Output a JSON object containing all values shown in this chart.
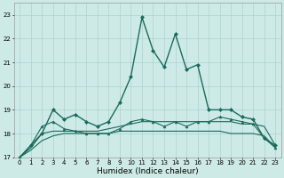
{
  "xlabel": "Humidex (Indice chaleur)",
  "ylabel": "",
  "xlim": [
    -0.5,
    23.5
  ],
  "ylim": [
    17,
    23.5
  ],
  "yticks": [
    17,
    18,
    19,
    20,
    21,
    22,
    23
  ],
  "xticks": [
    0,
    1,
    2,
    3,
    4,
    5,
    6,
    7,
    8,
    9,
    10,
    11,
    12,
    13,
    14,
    15,
    16,
    17,
    18,
    19,
    20,
    21,
    22,
    23
  ],
  "bg_color": "#ceeae7",
  "grid_color": "#aad4d0",
  "line_color": "#1a6b5a",
  "series1": {
    "x": [
      0,
      1,
      2,
      3,
      4,
      5,
      6,
      7,
      8,
      9,
      10,
      11,
      12,
      13,
      14,
      15,
      16,
      17,
      18,
      19,
      20,
      21,
      22,
      23
    ],
    "y": [
      17.0,
      17.5,
      18.0,
      19.0,
      18.6,
      18.8,
      18.5,
      18.3,
      18.5,
      19.3,
      20.4,
      22.9,
      21.5,
      20.8,
      22.2,
      20.7,
      20.9,
      19.0,
      19.0,
      19.0,
      18.7,
      18.6,
      17.8,
      17.5
    ],
    "marker": "D",
    "markersize": 2,
    "linewidth": 1.0
  },
  "series2": {
    "x": [
      0,
      1,
      2,
      3,
      4,
      5,
      6,
      7,
      8,
      9,
      10,
      11,
      12,
      13,
      14,
      15,
      16,
      17,
      18,
      19,
      20,
      21,
      22,
      23
    ],
    "y": [
      17.0,
      17.4,
      18.0,
      18.1,
      18.1,
      18.1,
      18.1,
      18.1,
      18.2,
      18.3,
      18.4,
      18.5,
      18.5,
      18.5,
      18.5,
      18.5,
      18.5,
      18.5,
      18.5,
      18.5,
      18.4,
      18.4,
      18.3,
      17.5
    ],
    "marker": null,
    "linewidth": 0.8
  },
  "series3": {
    "x": [
      0,
      1,
      2,
      3,
      4,
      5,
      6,
      7,
      8,
      9,
      10,
      11,
      12,
      13,
      14,
      15,
      16,
      17,
      18,
      19,
      20,
      21,
      22,
      23
    ],
    "y": [
      17.0,
      17.3,
      17.7,
      17.9,
      18.0,
      18.0,
      18.0,
      18.0,
      18.0,
      18.1,
      18.1,
      18.1,
      18.1,
      18.1,
      18.1,
      18.1,
      18.1,
      18.1,
      18.1,
      18.0,
      18.0,
      18.0,
      17.9,
      17.4
    ],
    "marker": null,
    "linewidth": 0.8
  },
  "series4": {
    "x": [
      0,
      1,
      2,
      3,
      4,
      5,
      6,
      7,
      8,
      9,
      10,
      11,
      12,
      13,
      14,
      15,
      16,
      17,
      18,
      19,
      20,
      21,
      22,
      23
    ],
    "y": [
      17.0,
      17.5,
      18.3,
      18.5,
      18.2,
      18.1,
      18.0,
      18.0,
      18.0,
      18.2,
      18.5,
      18.6,
      18.5,
      18.3,
      18.5,
      18.3,
      18.5,
      18.5,
      18.7,
      18.6,
      18.5,
      18.4,
      17.8,
      17.4
    ],
    "marker": "^",
    "markersize": 2,
    "linewidth": 0.8
  }
}
